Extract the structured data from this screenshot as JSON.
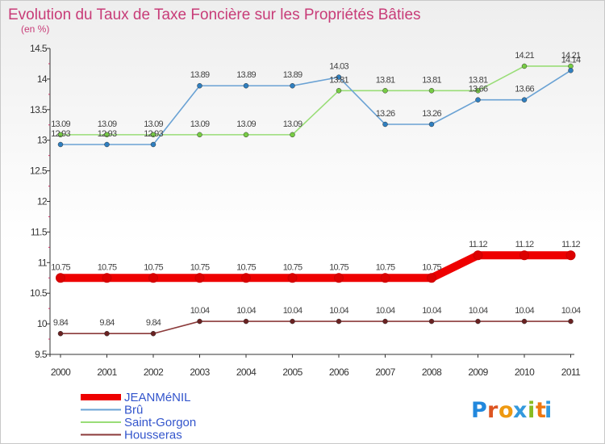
{
  "chart_data": {
    "type": "line",
    "title": "Evolution du Taux de Taxe Foncière sur les Propriétés Bâties",
    "subtitle": "(en %)",
    "x": [
      "2000",
      "2001",
      "2002",
      "2003",
      "2004",
      "2005",
      "2006",
      "2007",
      "2008",
      "2009",
      "2010",
      "2011"
    ],
    "yticks": [
      "9.5",
      "10",
      "10.5",
      "11",
      "11.5",
      "12",
      "12.5",
      "13",
      "13.5",
      "14",
      "14.5"
    ],
    "ylim": [
      9.5,
      14.5
    ],
    "grid": false,
    "legend_position": "bottom-left",
    "series": [
      {
        "name": "JEANMéNIL",
        "color": "#ee0000",
        "values": [
          10.75,
          10.75,
          10.75,
          10.75,
          10.75,
          10.75,
          10.75,
          10.75,
          10.75,
          11.12,
          11.12,
          11.12
        ],
        "labels": [
          "10.75",
          "10.75",
          "10.75",
          "10.75",
          "10.75",
          "10.75",
          "10.75",
          "10.75",
          "10.75",
          "11.12",
          "11.12",
          "11.12"
        ]
      },
      {
        "name": "Brû",
        "color": "#6aa2d4",
        "values": [
          12.93,
          12.93,
          12.93,
          13.89,
          13.89,
          13.89,
          14.03,
          13.26,
          13.26,
          13.66,
          13.66,
          14.14
        ],
        "labels": [
          "12.93",
          "12.93",
          "12.93",
          "13.89",
          "13.89",
          "13.89",
          "14.03",
          "13.26",
          "13.26",
          "13.66",
          "13.66",
          "14.14"
        ]
      },
      {
        "name": "Saint-Gorgon",
        "color": "#99dd77",
        "values": [
          13.09,
          13.09,
          13.09,
          13.09,
          13.09,
          13.09,
          13.81,
          13.81,
          13.81,
          13.81,
          14.21,
          14.21
        ],
        "labels": [
          "13.09",
          "13.09",
          "13.09",
          "13.09",
          "13.09",
          "13.09",
          "13.81",
          "13.81",
          "13.81",
          "13.81",
          "14.21",
          "14.21"
        ]
      },
      {
        "name": "Housseras",
        "color": "#8b3a3a",
        "values": [
          9.84,
          9.84,
          9.84,
          10.04,
          10.04,
          10.04,
          10.04,
          10.04,
          10.04,
          10.04,
          10.04,
          10.04
        ],
        "labels": [
          "9.84",
          "9.84",
          "9.84",
          "10.04",
          "10.04",
          "10.04",
          "10.04",
          "10.04",
          "10.04",
          "10.04",
          "10.04",
          "10.04"
        ]
      }
    ]
  },
  "logo": {
    "letters": [
      "P",
      "r",
      "o",
      "x",
      "i",
      "t",
      "i"
    ],
    "colors": [
      "#2288dd",
      "#dd5522",
      "#ee9911",
      "#3399dd",
      "#88bb22",
      "#ee7711",
      "#3399dd"
    ]
  }
}
